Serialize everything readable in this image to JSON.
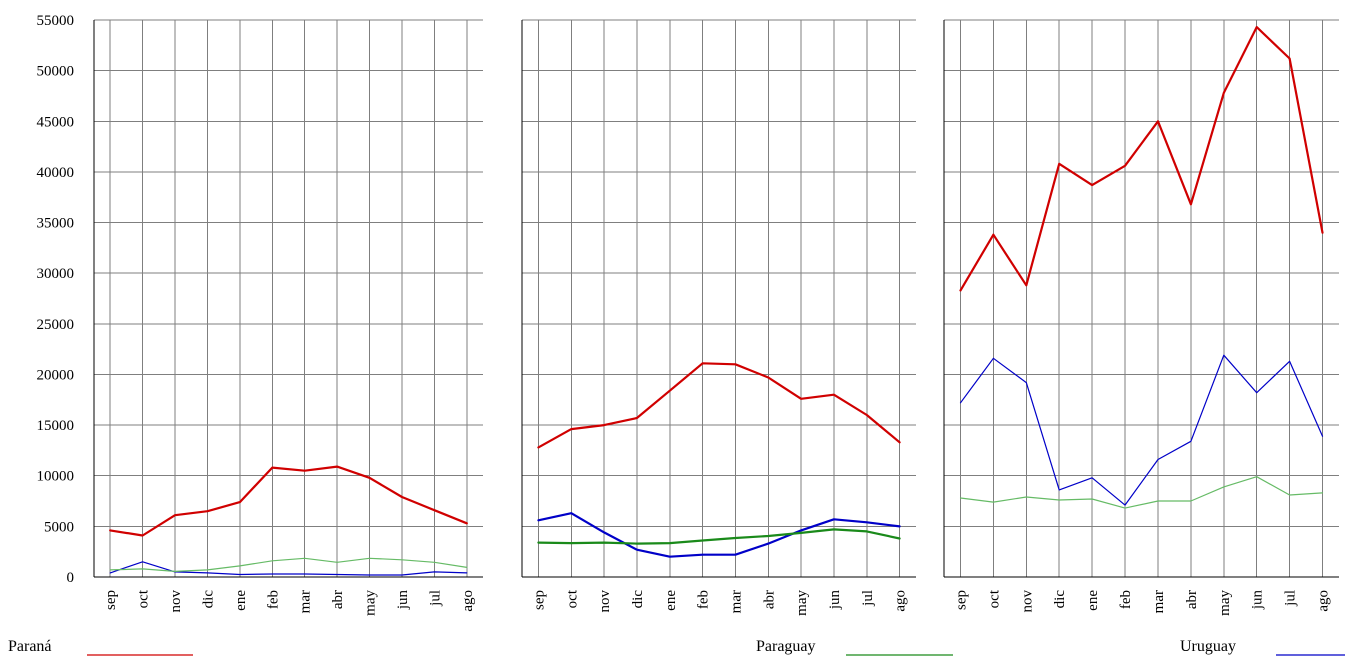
{
  "chart_data": {
    "type": "line",
    "categories": [
      "sep",
      "oct",
      "nov",
      "dic",
      "ene",
      "feb",
      "mar",
      "abr",
      "may",
      "jun",
      "jul",
      "ago"
    ],
    "ylim": [
      0,
      55000
    ],
    "yticks": [
      "0",
      "5000",
      "10000",
      "15000",
      "20000",
      "25000",
      "30000",
      "35000",
      "40000",
      "45000",
      "50000",
      "55000"
    ],
    "grid": true,
    "colors": {
      "red": "#d00000",
      "green": "#1a8a1a",
      "blue": "#0000c8",
      "light_green": "#66bb66"
    },
    "legend": [
      {
        "label": "Paraná",
        "color": "#d00000"
      },
      {
        "label": "Paraguay",
        "color": "#1a8a1a"
      },
      {
        "label": "Uruguay",
        "color": "#0000c8"
      }
    ],
    "panels": [
      {
        "title": "Paraná",
        "series": [
          {
            "color": "#d00000",
            "width": 2.2,
            "values": [
              4600,
              4100,
              6100,
              6500,
              7400,
              10800,
              10500,
              10900,
              9800,
              7900,
              6600,
              5300
            ]
          },
          {
            "color": "#0000c8",
            "width": 1.2,
            "values": [
              400,
              1500,
              500,
              400,
              250,
              300,
              300,
              250,
              200,
              200,
              500,
              400
            ]
          },
          {
            "color": "#66bb66",
            "width": 1.2,
            "values": [
              700,
              800,
              550,
              700,
              1100,
              1600,
              1850,
              1450,
              1850,
              1700,
              1450,
              950
            ]
          }
        ]
      },
      {
        "title": "Paraguay",
        "series": [
          {
            "color": "#d00000",
            "width": 2.2,
            "values": [
              12800,
              14600,
              15000,
              15700,
              18400,
              21100,
              21000,
              19700,
              17600,
              18000,
              16000,
              13300
            ]
          },
          {
            "color": "#0000c8",
            "width": 2.2,
            "values": [
              5600,
              6300,
              4400,
              2700,
              2000,
              2200,
              2200,
              3300,
              4600,
              5700,
              5400,
              5000
            ]
          },
          {
            "color": "#1a8a1a",
            "width": 2.2,
            "values": [
              3400,
              3350,
              3400,
              3300,
              3350,
              3600,
              3850,
              4050,
              4350,
              4700,
              4500,
              3800
            ]
          }
        ]
      },
      {
        "title": "Uruguay",
        "series": [
          {
            "color": "#d00000",
            "width": 2.2,
            "values": [
              28300,
              33800,
              28800,
              40800,
              38700,
              40600,
              45000,
              36800,
              47800,
              54300,
              51200,
              34000
            ]
          },
          {
            "color": "#0000c8",
            "width": 1.2,
            "values": [
              17200,
              21600,
              19200,
              8600,
              9800,
              7100,
              11600,
              13400,
              21900,
              18200,
              21300,
              13900
            ]
          },
          {
            "color": "#66bb66",
            "width": 1.2,
            "values": [
              7800,
              7400,
              7900,
              7600,
              7700,
              6800,
              7500,
              7500,
              8900,
              9900,
              8100,
              8300
            ]
          }
        ]
      }
    ]
  }
}
